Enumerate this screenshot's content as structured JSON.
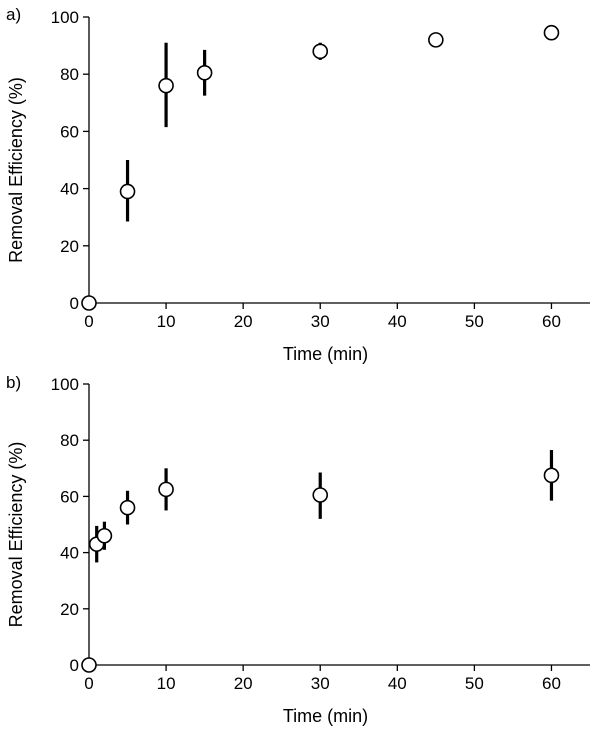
{
  "chart_data": [
    {
      "type": "scatter",
      "panel_label": "a)",
      "xlabel": "Time (min)",
      "ylabel": "Removal Efficiency (%)",
      "xlim": [
        0,
        65
      ],
      "ylim": [
        0,
        100
      ],
      "xticks": [
        0,
        10,
        20,
        30,
        40,
        50,
        60
      ],
      "yticks": [
        0,
        20,
        40,
        60,
        80,
        100
      ],
      "grid": false,
      "series": [
        {
          "x": [
            0,
            5,
            10,
            15,
            30,
            45,
            60
          ],
          "y": [
            0,
            39,
            76,
            80.5,
            88,
            92,
            94.5
          ],
          "err_low": [
            0,
            28.5,
            61.5,
            72.5,
            85,
            90,
            94
          ],
          "err_high": [
            0,
            50,
            91,
            88.5,
            91,
            93.5,
            95
          ]
        }
      ]
    },
    {
      "type": "scatter",
      "panel_label": "b)",
      "xlabel": "Time (min)",
      "ylabel": "Removal Efficiency (%)",
      "xlim": [
        0,
        65
      ],
      "ylim": [
        0,
        100
      ],
      "xticks": [
        0,
        10,
        20,
        30,
        40,
        50,
        60
      ],
      "yticks": [
        0,
        20,
        40,
        60,
        80,
        100
      ],
      "grid": false,
      "series": [
        {
          "x": [
            0,
            1,
            2,
            5,
            10,
            30,
            60
          ],
          "y": [
            0,
            43,
            46,
            56,
            62.5,
            60.5,
            67.5
          ],
          "err_low": [
            0,
            36.5,
            41,
            50,
            55,
            52,
            58.5
          ],
          "err_high": [
            0,
            49.5,
            51,
            62,
            70,
            68.5,
            76.5
          ]
        }
      ]
    }
  ]
}
